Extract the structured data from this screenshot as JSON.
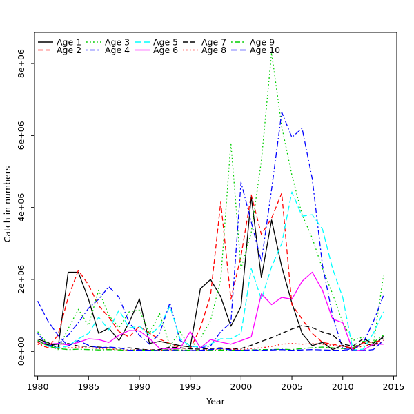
{
  "figure": {
    "background": "#ffffff",
    "box_color": "#000000"
  },
  "chart_data": {
    "type": "line",
    "title": "",
    "xlabel": "Year",
    "ylabel": "Catch in numbers",
    "grid": false,
    "legend_position": "top-left-inside",
    "legend_columns": 5,
    "legend_rows": 2,
    "xlim": [
      1979.69,
      2015.31
    ],
    "ylim": [
      -685000,
      8864000
    ],
    "x_ticks": [
      1980,
      1985,
      1990,
      1995,
      2000,
      2005,
      2010,
      2015
    ],
    "y_ticks": [
      {
        "value": 0,
        "label": "0e+00"
      },
      {
        "value": 2000000,
        "label": "2e+06"
      },
      {
        "value": 4000000,
        "label": "4e+06"
      },
      {
        "value": 6000000,
        "label": "6e+06"
      },
      {
        "value": 8000000,
        "label": "8e+06"
      }
    ],
    "x": [
      1980,
      1981,
      1982,
      1983,
      1984,
      1985,
      1986,
      1987,
      1988,
      1989,
      1990,
      1991,
      1992,
      1993,
      1994,
      1995,
      1996,
      1997,
      1998,
      1999,
      2000,
      2001,
      2002,
      2003,
      2004,
      2005,
      2006,
      2007,
      2008,
      2009,
      2010,
      2011,
      2012,
      2013,
      2014
    ],
    "series": [
      {
        "name": "Age 1",
        "color": "#000000",
        "linetype": "solid",
        "values": [
          340000,
          250000,
          80000,
          2200000,
          2200000,
          1450000,
          500000,
          650000,
          300000,
          800000,
          1460000,
          220000,
          280000,
          220000,
          160000,
          120000,
          1740000,
          2000000,
          1520000,
          700000,
          1250000,
          4300000,
          2050000,
          3650000,
          2350000,
          1350000,
          500000,
          160000,
          250000,
          50000,
          170000,
          40000,
          250000,
          150000,
          420000
        ]
      },
      {
        "name": "Age 2",
        "color": "#ff0000",
        "linetype": "dashed",
        "values": [
          250000,
          100000,
          450000,
          1500000,
          2250000,
          1850000,
          1270000,
          950000,
          550000,
          400000,
          700000,
          500000,
          340000,
          220000,
          100000,
          70000,
          660000,
          1550000,
          4150000,
          1450000,
          2650000,
          4350000,
          3250000,
          3700000,
          4400000,
          1300000,
          900000,
          500000,
          250000,
          200000,
          150000,
          90000,
          240000,
          260000,
          310000
        ]
      },
      {
        "name": "Age 3",
        "color": "#00cd00",
        "linetype": "dotted",
        "values": [
          550000,
          200000,
          50000,
          630000,
          1170000,
          720000,
          1700000,
          1000000,
          660000,
          1100000,
          1150000,
          500000,
          1050000,
          150000,
          550000,
          100000,
          370000,
          850000,
          2000000,
          5800000,
          2300000,
          3300000,
          5300000,
          8300000,
          6250000,
          4900000,
          3800000,
          3150000,
          2300000,
          1600000,
          800000,
          300000,
          400000,
          170000,
          2100000
        ]
      },
      {
        "name": "Age 4",
        "color": "#0000ff",
        "linetype": "dotdash",
        "values": [
          500000,
          150000,
          200000,
          450000,
          800000,
          1200000,
          1450000,
          1800000,
          1500000,
          800000,
          450000,
          200000,
          500000,
          1350000,
          300000,
          150000,
          100000,
          150000,
          550000,
          800000,
          4700000,
          3600000,
          2500000,
          4500000,
          6650000,
          5950000,
          6200000,
          4800000,
          2400000,
          1000000,
          70000,
          50000,
          230000,
          820000,
          1550000
        ]
      },
      {
        "name": "Age 5",
        "color": "#00ffff",
        "linetype": "longdash",
        "values": [
          300000,
          150000,
          100000,
          150000,
          350000,
          500000,
          950000,
          600000,
          1150000,
          650000,
          700000,
          450000,
          700000,
          1250000,
          350000,
          150000,
          120000,
          200000,
          350000,
          350000,
          500000,
          2300000,
          1450000,
          2350000,
          3000000,
          4430000,
          3760000,
          3800000,
          3400000,
          2300000,
          1500000,
          40000,
          60000,
          500000,
          1100000
        ]
      },
      {
        "name": "Age 6",
        "color": "#ff00ff",
        "linetype": "solid",
        "values": [
          280000,
          200000,
          220000,
          180000,
          250000,
          350000,
          330000,
          250000,
          450000,
          580000,
          570000,
          360000,
          80000,
          60000,
          80000,
          550000,
          100000,
          330000,
          260000,
          200000,
          300000,
          400000,
          1600000,
          1300000,
          1500000,
          1450000,
          1950000,
          2200000,
          1700000,
          900000,
          800000,
          20000,
          30000,
          200000,
          200000
        ]
      },
      {
        "name": "Age 7",
        "color": "#000000",
        "linetype": "dashed",
        "values": [
          300000,
          180000,
          200000,
          220000,
          150000,
          140000,
          120000,
          100000,
          80000,
          100000,
          60000,
          40000,
          50000,
          120000,
          100000,
          70000,
          60000,
          80000,
          100000,
          60000,
          80000,
          170000,
          280000,
          380000,
          500000,
          620000,
          720000,
          660000,
          540000,
          460000,
          200000,
          150000,
          350000,
          230000,
          380000
        ]
      },
      {
        "name": "Age 8",
        "color": "#ff0000",
        "linetype": "dotted",
        "values": [
          200000,
          100000,
          80000,
          100000,
          120000,
          100000,
          80000,
          60000,
          50000,
          40000,
          50000,
          40000,
          30000,
          30000,
          40000,
          30000,
          30000,
          50000,
          60000,
          60000,
          50000,
          80000,
          100000,
          140000,
          200000,
          220000,
          200000,
          220000,
          200000,
          170000,
          140000,
          70000,
          150000,
          200000,
          260000
        ]
      },
      {
        "name": "Age 9",
        "color": "#00cd00",
        "linetype": "dotdash",
        "values": [
          300000,
          150000,
          80000,
          50000,
          60000,
          50000,
          40000,
          50000,
          40000,
          30000,
          40000,
          30000,
          30000,
          50000,
          40000,
          30000,
          20000,
          30000,
          40000,
          30000,
          30000,
          40000,
          50000,
          50000,
          60000,
          50000,
          80000,
          100000,
          120000,
          100000,
          80000,
          100000,
          280000,
          250000,
          450000
        ]
      },
      {
        "name": "Age 10",
        "color": "#0000ff",
        "linetype": "longdash",
        "values": [
          1400000,
          850000,
          450000,
          150000,
          300000,
          170000,
          100000,
          120000,
          100000,
          30000,
          40000,
          30000,
          20000,
          30000,
          20000,
          20000,
          30000,
          50000,
          80000,
          40000,
          30000,
          40000,
          30000,
          40000,
          50000,
          30000,
          40000,
          50000,
          40000,
          30000,
          30000,
          20000,
          20000,
          50000,
          300000
        ]
      }
    ]
  }
}
